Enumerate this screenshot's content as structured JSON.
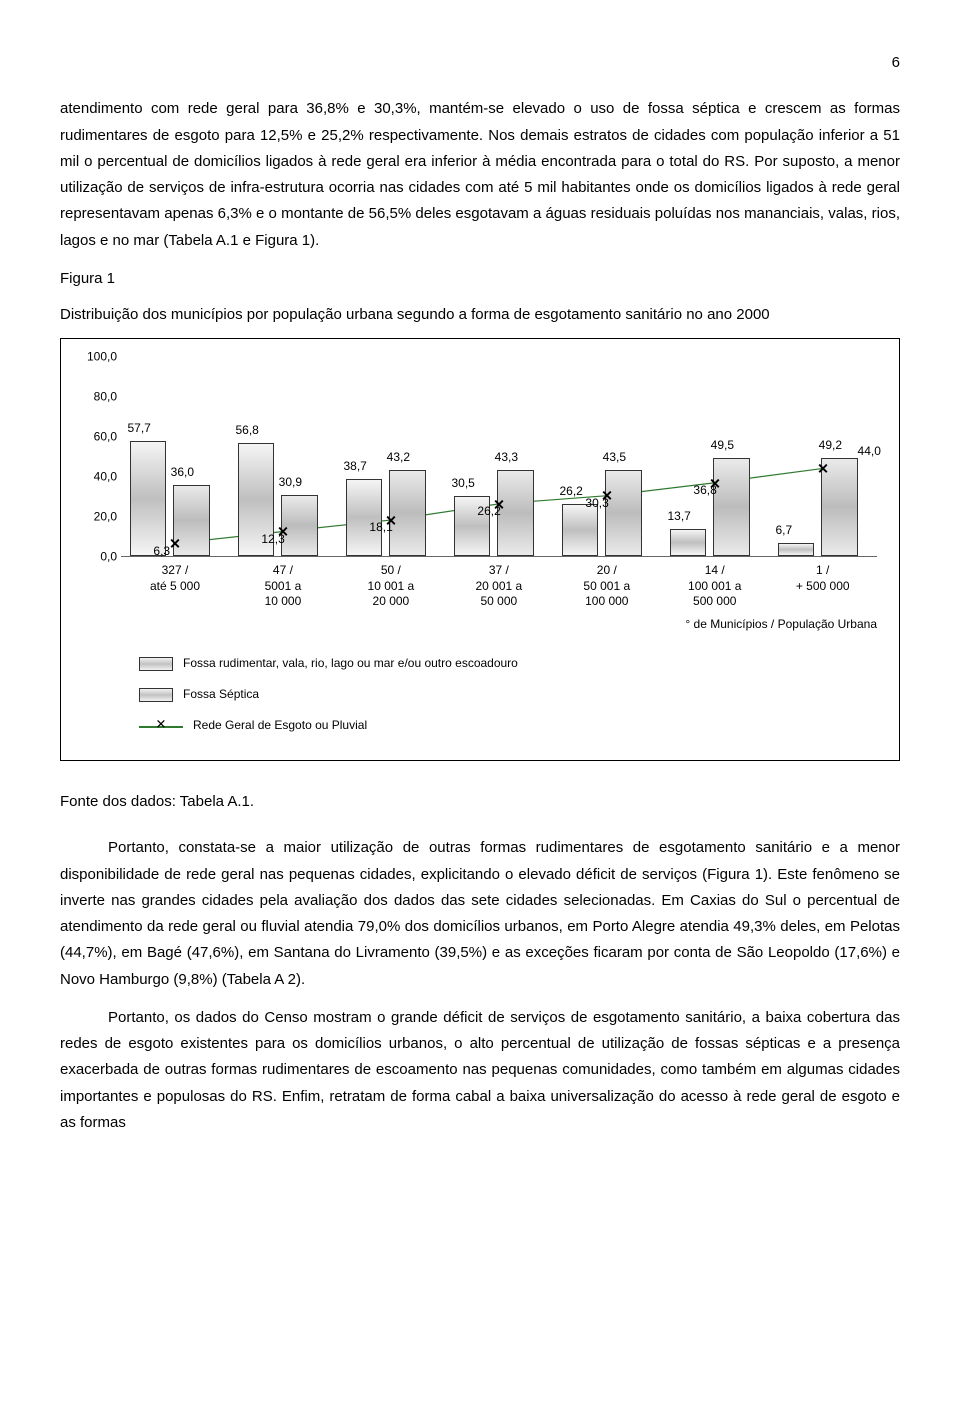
{
  "page_number": "6",
  "para1": "atendimento com rede geral para 36,8% e 30,3%, mantém-se elevado o uso de fossa séptica e crescem as formas rudimentares de esgoto para 12,5% e 25,2% respectivamente. Nos demais estratos de cidades com população inferior a 51 mil o percentual de domicílios ligados à rede geral era inferior à média encontrada para o total do RS. Por suposto, a menor utilização de serviços de infra-estrutura ocorria nas cidades com até 5 mil habitantes onde os domicílios ligados à rede geral representavam apenas 6,3% e o montante de 56,5% deles esgotavam a águas residuais poluídas nos mananciais, valas, rios, lagos e no mar (Tabela A.1 e Figura 1).",
  "fig_label": "Figura 1",
  "fig_caption": "Distribuição dos municípios por população urbana segundo a forma de esgotamento sanitário no ano 2000",
  "chart": {
    "ymax": 100,
    "yticks": [
      "100,0",
      "80,0",
      "60,0",
      "40,0",
      "20,0",
      "0,0"
    ],
    "categories": [
      {
        "count": "327 /",
        "range": "até 5 000"
      },
      {
        "count": "47 /",
        "range": "5001 a 10 000"
      },
      {
        "count": "50 /",
        "range": "10 001 a 20 000"
      },
      {
        "count": "37 /",
        "range": "20 001 a 50 000"
      },
      {
        "count": "20 /",
        "range": "50 001 a 100 000"
      },
      {
        "count": "14 /",
        "range": "100 001 a 500 000"
      },
      {
        "count": "1 /",
        "range": "+ 500 000"
      }
    ],
    "bar1_vals": [
      57.7,
      56.8,
      38.7,
      30.5,
      26.2,
      13.7,
      6.7
    ],
    "bar1_labels": [
      "57,7",
      "56,8",
      "38,7",
      "30,5",
      "26,2",
      "13,7",
      "6,7"
    ],
    "bar2_vals": [
      36.0,
      30.9,
      43.2,
      43.3,
      43.5,
      49.5,
      49.2
    ],
    "bar2_labels": [
      "36,0",
      "30,9",
      "43,2",
      "43,3",
      "43,5",
      "49,5",
      "49,2"
    ],
    "bar2_extra_last": "44,0",
    "line_vals": [
      6.3,
      12.3,
      18.1,
      26.2,
      30.3,
      36.8,
      44.0
    ],
    "line_labels": [
      "6,3",
      "12,3",
      "18,1",
      "26,2",
      "30,3",
      "36,8",
      ""
    ],
    "line_color": "#2f7a2f",
    "secondary_label": "° de Municípios / População Urbana",
    "legend": {
      "a": "Fossa rudimentar, vala, rio, lago ou mar e/ou outro escoadouro",
      "b": "Fossa Séptica",
      "c": "Rede Geral de Esgoto ou Pluvial"
    }
  },
  "source": "Fonte dos dados: Tabela A.1.",
  "para2": "Portanto, constata-se a maior utilização de outras formas rudimentares de esgotamento sanitário e a menor disponibilidade de rede geral nas pequenas cidades, explicitando o elevado déficit de serviços (Figura 1). Este fenômeno se inverte nas grandes cidades pela avaliação dos dados das sete cidades selecionadas. Em Caxias do Sul o percentual de atendimento da rede geral ou fluvial atendia 79,0% dos domicílios urbanos, em Porto Alegre atendia 49,3% deles, em Pelotas (44,7%), em Bagé (47,6%), em Santana do Livramento (39,5%) e as exceções ficaram por conta de São Leopoldo (17,6%) e Novo Hamburgo (9,8%) (Tabela A 2).",
  "para3": "Portanto, os dados do Censo mostram o grande déficit de serviços de esgotamento sanitário, a baixa cobertura das redes de esgoto existentes para os domicílios urbanos, o alto percentual de utilização de fossas sépticas e a presença exacerbada de outras formas rudimentares de escoamento nas pequenas comunidades, como também em algumas cidades importantes e populosas do RS. Enfim, retratam de forma cabal a baixa universalização do acesso à rede geral de esgoto e as formas"
}
